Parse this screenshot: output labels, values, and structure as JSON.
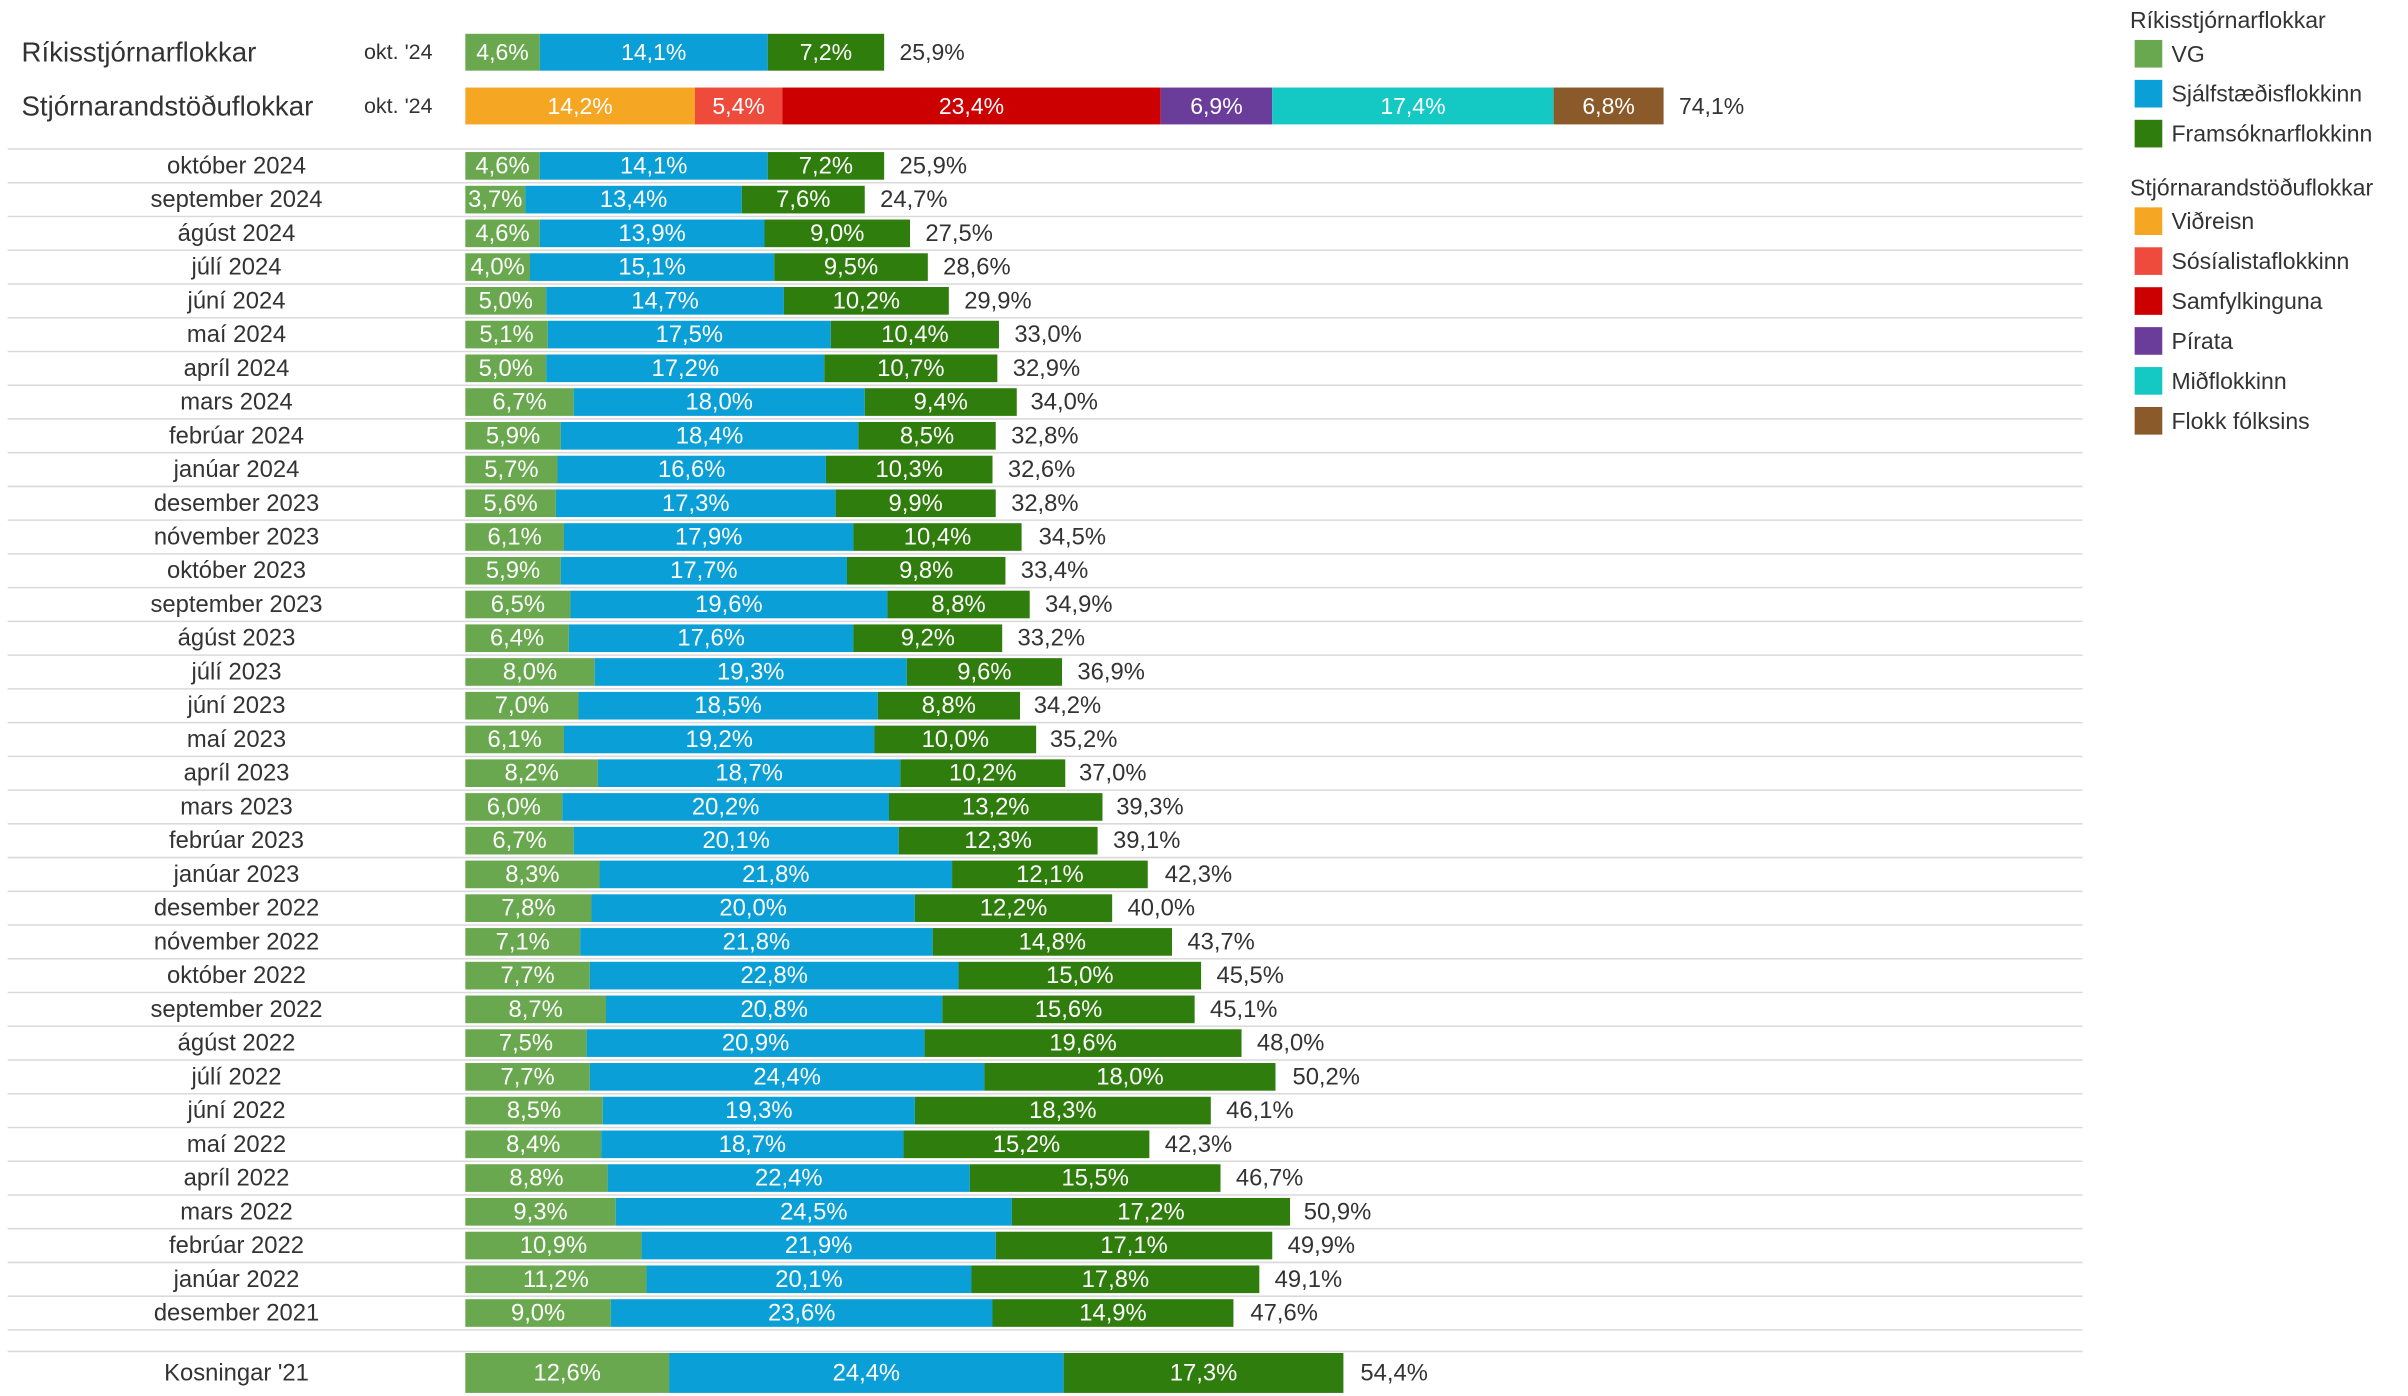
{
  "chart_data": [
    {
      "type": "bar",
      "orientation": "horizontal",
      "stacked": true,
      "categories": [
        "Ríkisstjórnarflokkar",
        "Stjórnarandstöðuflokkar"
      ],
      "period_labels": [
        "okt. '24",
        "okt. '24"
      ],
      "xlim": [
        0,
        100
      ],
      "series": [
        {
          "name": "VG",
          "color": "#6aa84f",
          "values": [
            4.6,
            null
          ],
          "value_labels": [
            "4,6%",
            null
          ]
        },
        {
          "name": "Sjálfstæðisflokkinn",
          "color": "#0a9fd6",
          "values": [
            14.1,
            null
          ],
          "value_labels": [
            "14,1%",
            null
          ]
        },
        {
          "name": "Framsóknarflokkinn",
          "color": "#2f7d0c",
          "values": [
            7.2,
            null
          ],
          "value_labels": [
            "7,2%",
            null
          ]
        },
        {
          "name": "Viðreisn",
          "color": "#f5a623",
          "values": [
            null,
            14.2
          ],
          "value_labels": [
            null,
            "14,2%"
          ]
        },
        {
          "name": "Sósíalistaflokkinn",
          "color": "#ef4b3c",
          "values": [
            null,
            5.4
          ],
          "value_labels": [
            null,
            "5,4%"
          ]
        },
        {
          "name": "Samfylkinguna",
          "color": "#cc0000",
          "values": [
            null,
            23.4
          ],
          "value_labels": [
            null,
            "23,4%"
          ]
        },
        {
          "name": "Pírata",
          "color": "#6a3d9a",
          "values": [
            null,
            6.9
          ],
          "value_labels": [
            null,
            "6,9%"
          ]
        },
        {
          "name": "Miðflokkinn",
          "color": "#14c9c4",
          "values": [
            null,
            17.4
          ],
          "value_labels": [
            null,
            "17,4%"
          ]
        },
        {
          "name": "Flokk fólksins",
          "color": "#8b5a2b",
          "values": [
            null,
            6.8
          ],
          "value_labels": [
            null,
            "6,8%"
          ]
        }
      ],
      "totals": [
        25.9,
        74.1
      ],
      "total_labels": [
        "25,9%",
        "74,1%"
      ],
      "legend": "right"
    },
    {
      "type": "bar",
      "orientation": "horizontal",
      "stacked": true,
      "categories": [
        "október 2024",
        "september 2024",
        "ágúst 2024",
        "júlí 2024",
        "júní 2024",
        "maí 2024",
        "apríl 2024",
        "mars 2024",
        "febrúar 2024",
        "janúar 2024",
        "desember 2023",
        "nóvember 2023",
        "október 2023",
        "september 2023",
        "ágúst 2023",
        "júlí 2023",
        "júní 2023",
        "maí 2023",
        "apríl 2023",
        "mars 2023",
        "febrúar 2023",
        "janúar 2023",
        "desember 2022",
        "nóvember 2022",
        "október 2022",
        "september 2022",
        "ágúst 2022",
        "júlí 2022",
        "júní 2022",
        "maí 2022",
        "apríl 2022",
        "mars 2022",
        "febrúar 2022",
        "janúar 2022",
        "desember 2021",
        "Kosningar '21"
      ],
      "xlim": [
        0,
        100
      ],
      "series": [
        {
          "color": "#6aa84f",
          "values": [
            4.6,
            3.7,
            4.6,
            4.0,
            5.0,
            5.1,
            5.0,
            6.7,
            5.9,
            5.7,
            5.6,
            6.1,
            5.9,
            6.5,
            6.4,
            8.0,
            7.0,
            6.1,
            8.2,
            6.0,
            6.7,
            8.3,
            7.8,
            7.1,
            7.7,
            8.7,
            7.5,
            7.7,
            8.5,
            8.4,
            8.8,
            9.3,
            10.9,
            11.2,
            9.0,
            12.6
          ],
          "value_labels": [
            "4,6%",
            "3,7%",
            "4,6%",
            "4,0%",
            "5,0%",
            "5,1%",
            "5,0%",
            "6,7%",
            "5,9%",
            "5,7%",
            "5,6%",
            "6,1%",
            "5,9%",
            "6,5%",
            "6,4%",
            "8,0%",
            "7,0%",
            "6,1%",
            "8,2%",
            "6,0%",
            "6,7%",
            "8,3%",
            "7,8%",
            "7,1%",
            "7,7%",
            "8,7%",
            "7,5%",
            "7,7%",
            "8,5%",
            "8,4%",
            "8,8%",
            "9,3%",
            "10,9%",
            "11,2%",
            "9,0%",
            "12,6%"
          ]
        },
        {
          "color": "#0a9fd6",
          "values": [
            14.1,
            13.4,
            13.9,
            15.1,
            14.7,
            17.5,
            17.2,
            18.0,
            18.4,
            16.6,
            17.3,
            17.9,
            17.7,
            19.6,
            17.6,
            19.3,
            18.5,
            19.2,
            18.7,
            20.2,
            20.1,
            21.8,
            20.0,
            21.8,
            22.8,
            20.8,
            20.9,
            24.4,
            19.3,
            18.7,
            22.4,
            24.5,
            21.9,
            20.1,
            23.6,
            24.4
          ],
          "value_labels": [
            "14,1%",
            "13,4%",
            "13,9%",
            "15,1%",
            "14,7%",
            "17,5%",
            "17,2%",
            "18,0%",
            "18,4%",
            "16,6%",
            "17,3%",
            "17,9%",
            "17,7%",
            "19,6%",
            "17,6%",
            "19,3%",
            "18,5%",
            "19,2%",
            "18,7%",
            "20,2%",
            "20,1%",
            "21,8%",
            "20,0%",
            "21,8%",
            "22,8%",
            "20,8%",
            "20,9%",
            "24,4%",
            "19,3%",
            "18,7%",
            "22,4%",
            "24,5%",
            "21,9%",
            "20,1%",
            "23,6%",
            "24,4%"
          ]
        },
        {
          "color": "#2f7d0c",
          "values": [
            7.2,
            7.6,
            9.0,
            9.5,
            10.2,
            10.4,
            10.7,
            9.4,
            8.5,
            10.3,
            9.9,
            10.4,
            9.8,
            8.8,
            9.2,
            9.6,
            8.8,
            10.0,
            10.2,
            13.2,
            12.3,
            12.1,
            12.2,
            14.8,
            15.0,
            15.6,
            19.6,
            18.0,
            18.3,
            15.2,
            15.5,
            17.2,
            17.1,
            17.8,
            14.9,
            17.3
          ],
          "value_labels": [
            "7,2%",
            "7,6%",
            "9,0%",
            "9,5%",
            "10,2%",
            "10,4%",
            "10,7%",
            "9,4%",
            "8,5%",
            "10,3%",
            "9,9%",
            "10,4%",
            "9,8%",
            "8,8%",
            "9,2%",
            "9,6%",
            "8,8%",
            "10,0%",
            "10,2%",
            "13,2%",
            "12,3%",
            "12,1%",
            "12,2%",
            "14,8%",
            "15,0%",
            "15,6%",
            "19,6%",
            "18,0%",
            "18,3%",
            "15,2%",
            "15,5%",
            "17,2%",
            "17,1%",
            "17,8%",
            "14,9%",
            "17,3%"
          ]
        }
      ],
      "totals": [
        25.9,
        24.7,
        27.5,
        28.6,
        29.9,
        33.0,
        32.9,
        34.0,
        32.8,
        32.6,
        32.8,
        34.5,
        33.4,
        34.9,
        33.2,
        36.9,
        34.2,
        35.2,
        37.0,
        39.3,
        39.1,
        42.3,
        40.0,
        43.7,
        45.5,
        45.1,
        48.0,
        50.2,
        46.1,
        42.3,
        46.7,
        50.9,
        49.9,
        49.1,
        47.6,
        54.4
      ],
      "total_labels": [
        "25,9%",
        "24,7%",
        "27,5%",
        "28,6%",
        "29,9%",
        "33,0%",
        "32,9%",
        "34,0%",
        "32,8%",
        "32,6%",
        "32,8%",
        "34,5%",
        "33,4%",
        "34,9%",
        "33,2%",
        "36,9%",
        "34,2%",
        "35,2%",
        "37,0%",
        "39,3%",
        "39,1%",
        "42,3%",
        "40,0%",
        "43,7%",
        "45,5%",
        "45,1%",
        "48,0%",
        "50,2%",
        "46,1%",
        "42,3%",
        "46,7%",
        "50,9%",
        "49,9%",
        "49,1%",
        "47,6%",
        "54,4%"
      ]
    }
  ]
}
